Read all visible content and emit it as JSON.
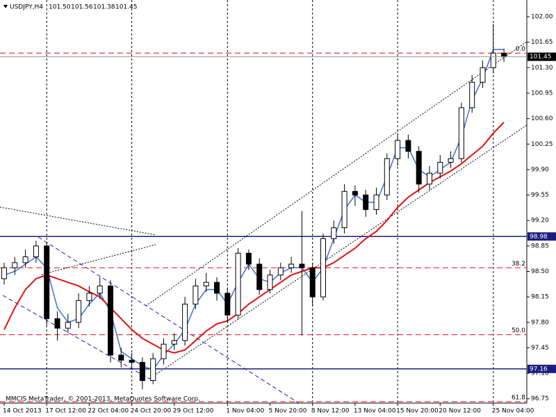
{
  "chart_data": {
    "type": "candlestick",
    "title": "USDJPY,H4",
    "header_values": [
      "101.50",
      "101.56",
      "101.38",
      "101.45"
    ],
    "footer": "MMCIS MetaTrader, © 2001-2013, MetaQuotes Software Corp.",
    "categories": [
      "14 Oct 2013",
      null,
      null,
      null,
      "17 Oct 12:00",
      null,
      null,
      null,
      "22 Oct 04:00",
      null,
      null,
      null,
      "24 Oct 20:00",
      null,
      null,
      null,
      "29 Oct 12:00",
      null,
      null,
      null,
      null,
      "1 Nov 04:00",
      null,
      null,
      null,
      "5 Nov 20:00",
      null,
      null,
      null,
      "8 Nov 12:00",
      null,
      null,
      null,
      "13 Nov 04:00",
      null,
      null,
      null,
      "15 Nov 20:00",
      null,
      null,
      null,
      "20 Nov 12:00",
      null,
      null,
      null,
      null,
      "25 Nov 04:00",
      null
    ],
    "open": [
      98.4,
      98.55,
      98.62,
      98.7,
      98.85,
      97.85,
      97.72,
      97.8,
      98.1,
      98.2,
      98.3,
      97.35,
      97.28,
      97.25,
      97.0,
      97.3,
      97.5,
      97.55,
      98.05,
      98.3,
      98.35,
      98.2,
      97.9,
      98.75,
      98.6,
      98.25,
      98.45,
      98.55,
      98.6,
      98.55,
      98.15,
      98.95,
      99.1,
      99.6,
      99.55,
      99.35,
      99.55,
      100.05,
      100.3,
      100.15,
      99.7,
      99.85,
      100.0,
      100.05,
      100.75,
      101.1,
      101.3,
      101.5
    ],
    "high": [
      98.62,
      98.7,
      98.8,
      98.92,
      98.9,
      97.95,
      97.92,
      98.2,
      98.3,
      98.42,
      98.38,
      97.45,
      97.38,
      97.32,
      97.38,
      97.58,
      97.65,
      98.15,
      98.4,
      98.48,
      98.42,
      98.28,
      98.82,
      98.8,
      98.68,
      98.52,
      98.62,
      98.7,
      99.33,
      98.62,
      99.02,
      99.2,
      99.7,
      99.68,
      99.62,
      99.65,
      100.12,
      100.4,
      100.38,
      100.22,
      99.95,
      100.1,
      100.15,
      100.82,
      101.2,
      101.4,
      101.9,
      101.56
    ],
    "low": [
      98.32,
      98.45,
      98.55,
      98.62,
      97.75,
      97.55,
      97.65,
      97.72,
      98.02,
      98.12,
      97.25,
      97.18,
      97.15,
      96.88,
      96.95,
      97.22,
      97.42,
      97.48,
      97.98,
      98.22,
      98.1,
      97.8,
      97.85,
      98.52,
      98.18,
      98.2,
      98.38,
      98.48,
      97.62,
      98.02,
      98.1,
      98.88,
      99.02,
      99.4,
      99.25,
      99.28,
      99.48,
      99.95,
      100.05,
      99.58,
      99.62,
      99.78,
      99.92,
      100.0,
      100.68,
      101.02,
      101.22,
      101.38
    ],
    "close": [
      98.55,
      98.62,
      98.7,
      98.85,
      97.85,
      97.72,
      97.8,
      98.1,
      98.2,
      98.3,
      97.35,
      97.28,
      97.25,
      97.0,
      97.3,
      97.5,
      97.55,
      98.05,
      98.3,
      98.35,
      98.2,
      97.9,
      98.75,
      98.6,
      98.25,
      98.45,
      98.55,
      98.6,
      98.55,
      98.15,
      98.95,
      99.1,
      99.6,
      99.55,
      99.35,
      99.55,
      100.05,
      100.3,
      100.15,
      99.7,
      99.85,
      100.0,
      100.05,
      100.75,
      101.1,
      101.3,
      101.5,
      101.45
    ],
    "series": [
      {
        "color": "#3a6fd8",
        "values": [
          98.45,
          98.5,
          98.6,
          98.7,
          98.55,
          98.0,
          97.8,
          97.85,
          98.05,
          98.2,
          97.95,
          97.4,
          97.3,
          97.2,
          97.15,
          97.35,
          97.5,
          97.7,
          98.05,
          98.25,
          98.25,
          98.05,
          98.35,
          98.6,
          98.4,
          98.35,
          98.48,
          98.55,
          98.55,
          98.35,
          98.55,
          98.95,
          99.35,
          99.55,
          99.45,
          99.45,
          99.8,
          100.2,
          100.2,
          99.9,
          99.8,
          99.9,
          100.0,
          100.35,
          100.85,
          101.15,
          101.55,
          101.55
        ]
      },
      {
        "color": "#e01010",
        "values": [
          97.7,
          98.0,
          98.25,
          98.4,
          98.45,
          98.4,
          98.35,
          98.3,
          98.22,
          98.15,
          98.0,
          97.85,
          97.7,
          97.58,
          97.5,
          97.42,
          97.38,
          97.42,
          97.55,
          97.68,
          97.78,
          97.82,
          97.92,
          98.05,
          98.15,
          98.25,
          98.35,
          98.45,
          98.5,
          98.55,
          98.55,
          98.62,
          98.72,
          98.82,
          98.95,
          99.05,
          99.2,
          99.38,
          99.52,
          99.62,
          99.72,
          99.8,
          99.88,
          99.98,
          100.1,
          100.22,
          100.4,
          100.55
        ]
      }
    ],
    "ylim": [
      96.69,
      102.23
    ],
    "yticks": [
      {
        "value": 102.0,
        "label": "102.00"
      },
      {
        "value": 101.65,
        "label": "101.65"
      },
      {
        "value": 101.3,
        "label": "101.30"
      },
      {
        "value": 100.95,
        "label": "100.95"
      },
      {
        "value": 100.6,
        "label": "100.60"
      },
      {
        "value": 100.25,
        "label": "100.25"
      },
      {
        "value": 99.9,
        "label": "99.90"
      },
      {
        "value": 99.55,
        "label": "99.55"
      },
      {
        "value": 99.2,
        "label": "99.20"
      },
      {
        "value": 98.85,
        "label": "98.85"
      },
      {
        "value": 98.5,
        "label": "98.50"
      },
      {
        "value": 98.15,
        "label": "98.15"
      },
      {
        "value": 97.8,
        "label": "97.80"
      },
      {
        "value": 97.45,
        "label": "97.45"
      },
      {
        "value": 97.1,
        "label": "97.10"
      },
      {
        "value": 96.75,
        "label": "96.75"
      }
    ],
    "hlines": [
      {
        "value": 98.98,
        "label": "98.98"
      },
      {
        "value": 97.16,
        "label": "97.16"
      }
    ],
    "fib_levels": [
      {
        "value": 101.5,
        "label": "0.0"
      },
      {
        "value": 98.55,
        "label": "38.2"
      },
      {
        "value": 97.63,
        "label": "50.0"
      },
      {
        "value": 96.71,
        "label": "61.8"
      }
    ],
    "current_price": {
      "value": 101.45,
      "label": "101.45"
    },
    "grid": true
  }
}
